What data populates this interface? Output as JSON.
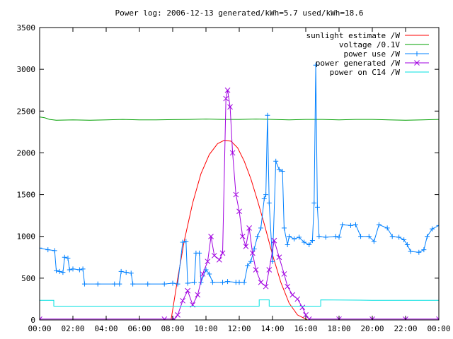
{
  "chart_data": {
    "type": "line",
    "title": "Power log: 2006-12-13 generated/kWh=5.7 used/kWh=18.6",
    "xlabel": "",
    "ylabel": "",
    "xlim": [
      0,
      24
    ],
    "ylim": [
      0,
      3500
    ],
    "x_tick_labels": [
      "00:00",
      "02:00",
      "04:00",
      "06:00",
      "08:00",
      "10:00",
      "12:00",
      "14:00",
      "16:00",
      "18:00",
      "20:00",
      "22:00",
      "00:00"
    ],
    "y_ticks": [
      0,
      500,
      1000,
      1500,
      2000,
      2500,
      3000,
      3500
    ],
    "grid": false,
    "legend_position": "top-right",
    "series": [
      {
        "name": "sunlight estimate /W",
        "color": "#ff0000",
        "marker": "none",
        "points": [
          [
            7.9,
            0
          ],
          [
            8.3,
            500
          ],
          [
            8.7,
            950
          ],
          [
            9.2,
            1400
          ],
          [
            9.7,
            1750
          ],
          [
            10.2,
            1980
          ],
          [
            10.7,
            2110
          ],
          [
            11.1,
            2150
          ],
          [
            11.5,
            2140
          ],
          [
            11.9,
            2060
          ],
          [
            12.3,
            1900
          ],
          [
            12.7,
            1690
          ],
          [
            13.1,
            1430
          ],
          [
            13.5,
            1150
          ],
          [
            14.0,
            780
          ],
          [
            14.5,
            450
          ],
          [
            15.0,
            200
          ],
          [
            15.5,
            60
          ],
          [
            16.1,
            0
          ]
        ]
      },
      {
        "name": "voltage /0.1V",
        "color": "#00a000",
        "marker": "none",
        "points": [
          [
            0.0,
            2430
          ],
          [
            0.3,
            2420
          ],
          [
            0.6,
            2400
          ],
          [
            1.0,
            2390
          ],
          [
            2.0,
            2395
          ],
          [
            3.0,
            2390
          ],
          [
            4.0,
            2395
          ],
          [
            5.0,
            2400
          ],
          [
            6.0,
            2395
          ],
          [
            7.0,
            2395
          ],
          [
            8.0,
            2398
          ],
          [
            9.0,
            2400
          ],
          [
            10.0,
            2405
          ],
          [
            11.0,
            2400
          ],
          [
            12.0,
            2400
          ],
          [
            13.0,
            2405
          ],
          [
            14.0,
            2400
          ],
          [
            15.0,
            2395
          ],
          [
            16.0,
            2400
          ],
          [
            17.0,
            2400
          ],
          [
            18.0,
            2395
          ],
          [
            19.0,
            2400
          ],
          [
            20.0,
            2400
          ],
          [
            21.0,
            2395
          ],
          [
            22.0,
            2390
          ],
          [
            23.0,
            2395
          ],
          [
            24.0,
            2400
          ]
        ]
      },
      {
        "name": "power use /W",
        "color": "#0080ff",
        "marker": "plus",
        "points": [
          [
            0.0,
            860
          ],
          [
            0.5,
            840
          ],
          [
            0.9,
            830
          ],
          [
            1.0,
            590
          ],
          [
            1.2,
            580
          ],
          [
            1.4,
            570
          ],
          [
            1.5,
            750
          ],
          [
            1.7,
            740
          ],
          [
            1.8,
            600
          ],
          [
            2.0,
            610
          ],
          [
            2.4,
            600
          ],
          [
            2.6,
            610
          ],
          [
            2.7,
            430
          ],
          [
            3.5,
            430
          ],
          [
            4.5,
            430
          ],
          [
            4.8,
            430
          ],
          [
            4.9,
            580
          ],
          [
            5.2,
            570
          ],
          [
            5.5,
            560
          ],
          [
            5.6,
            430
          ],
          [
            6.5,
            430
          ],
          [
            7.5,
            430
          ],
          [
            8.0,
            440
          ],
          [
            8.3,
            430
          ],
          [
            8.6,
            930
          ],
          [
            8.8,
            940
          ],
          [
            8.9,
            440
          ],
          [
            9.3,
            450
          ],
          [
            9.4,
            800
          ],
          [
            9.6,
            800
          ],
          [
            9.7,
            450
          ],
          [
            10.0,
            600
          ],
          [
            10.2,
            550
          ],
          [
            10.4,
            450
          ],
          [
            11.0,
            450
          ],
          [
            11.3,
            460
          ],
          [
            11.8,
            450
          ],
          [
            12.0,
            450
          ],
          [
            12.3,
            450
          ],
          [
            12.5,
            650
          ],
          [
            12.7,
            700
          ],
          [
            12.9,
            850
          ],
          [
            13.1,
            1000
          ],
          [
            13.3,
            1100
          ],
          [
            13.5,
            1450
          ],
          [
            13.6,
            1500
          ],
          [
            13.7,
            2450
          ],
          [
            13.8,
            1400
          ],
          [
            14.0,
            700
          ],
          [
            14.2,
            1900
          ],
          [
            14.4,
            1800
          ],
          [
            14.6,
            1780
          ],
          [
            14.7,
            1100
          ],
          [
            14.9,
            900
          ],
          [
            15.0,
            1000
          ],
          [
            15.3,
            970
          ],
          [
            15.6,
            990
          ],
          [
            15.9,
            930
          ],
          [
            16.2,
            900
          ],
          [
            16.4,
            950
          ],
          [
            16.5,
            1400
          ],
          [
            16.6,
            3050
          ],
          [
            16.7,
            1350
          ],
          [
            16.8,
            1000
          ],
          [
            17.2,
            990
          ],
          [
            17.8,
            1000
          ],
          [
            18.0,
            990
          ],
          [
            18.2,
            1140
          ],
          [
            18.7,
            1130
          ],
          [
            19.0,
            1140
          ],
          [
            19.3,
            1000
          ],
          [
            19.8,
            1000
          ],
          [
            20.1,
            940
          ],
          [
            20.4,
            1140
          ],
          [
            20.9,
            1100
          ],
          [
            21.2,
            1000
          ],
          [
            21.6,
            990
          ],
          [
            21.9,
            960
          ],
          [
            22.1,
            900
          ],
          [
            22.3,
            820
          ],
          [
            22.8,
            810
          ],
          [
            23.1,
            840
          ],
          [
            23.3,
            1000
          ],
          [
            23.6,
            1090
          ],
          [
            24.0,
            1130
          ]
        ]
      },
      {
        "name": "power generated /W",
        "color": "#a000e0",
        "marker": "cross",
        "points": [
          [
            0.0,
            10
          ],
          [
            7.5,
            10
          ],
          [
            8.1,
            10
          ],
          [
            8.3,
            60
          ],
          [
            8.6,
            230
          ],
          [
            8.9,
            350
          ],
          [
            9.2,
            180
          ],
          [
            9.5,
            300
          ],
          [
            9.8,
            550
          ],
          [
            10.1,
            700
          ],
          [
            10.3,
            1000
          ],
          [
            10.5,
            770
          ],
          [
            10.8,
            720
          ],
          [
            11.0,
            800
          ],
          [
            11.2,
            2650
          ],
          [
            11.3,
            2750
          ],
          [
            11.45,
            2550
          ],
          [
            11.6,
            2000
          ],
          [
            11.8,
            1500
          ],
          [
            12.0,
            1300
          ],
          [
            12.2,
            1000
          ],
          [
            12.4,
            880
          ],
          [
            12.6,
            1100
          ],
          [
            12.8,
            800
          ],
          [
            13.0,
            600
          ],
          [
            13.3,
            450
          ],
          [
            13.6,
            400
          ],
          [
            13.8,
            600
          ],
          [
            14.1,
            950
          ],
          [
            14.4,
            750
          ],
          [
            14.7,
            550
          ],
          [
            14.9,
            400
          ],
          [
            15.2,
            300
          ],
          [
            15.5,
            250
          ],
          [
            15.8,
            150
          ],
          [
            16.0,
            60
          ],
          [
            16.2,
            10
          ],
          [
            18.0,
            10
          ],
          [
            20.0,
            10
          ],
          [
            22.0,
            10
          ],
          [
            24.0,
            10
          ]
        ]
      },
      {
        "name": "power on C14 /W",
        "color": "#00e0e0",
        "marker": "none",
        "points": [
          [
            0.0,
            235
          ],
          [
            0.85,
            235
          ],
          [
            0.85,
            165
          ],
          [
            5.0,
            165
          ],
          [
            10.0,
            165
          ],
          [
            13.2,
            165
          ],
          [
            13.2,
            240
          ],
          [
            13.8,
            240
          ],
          [
            13.8,
            165
          ],
          [
            16.0,
            165
          ],
          [
            16.9,
            165
          ],
          [
            16.9,
            240
          ],
          [
            20.0,
            235
          ],
          [
            24.0,
            235
          ]
        ]
      }
    ]
  }
}
